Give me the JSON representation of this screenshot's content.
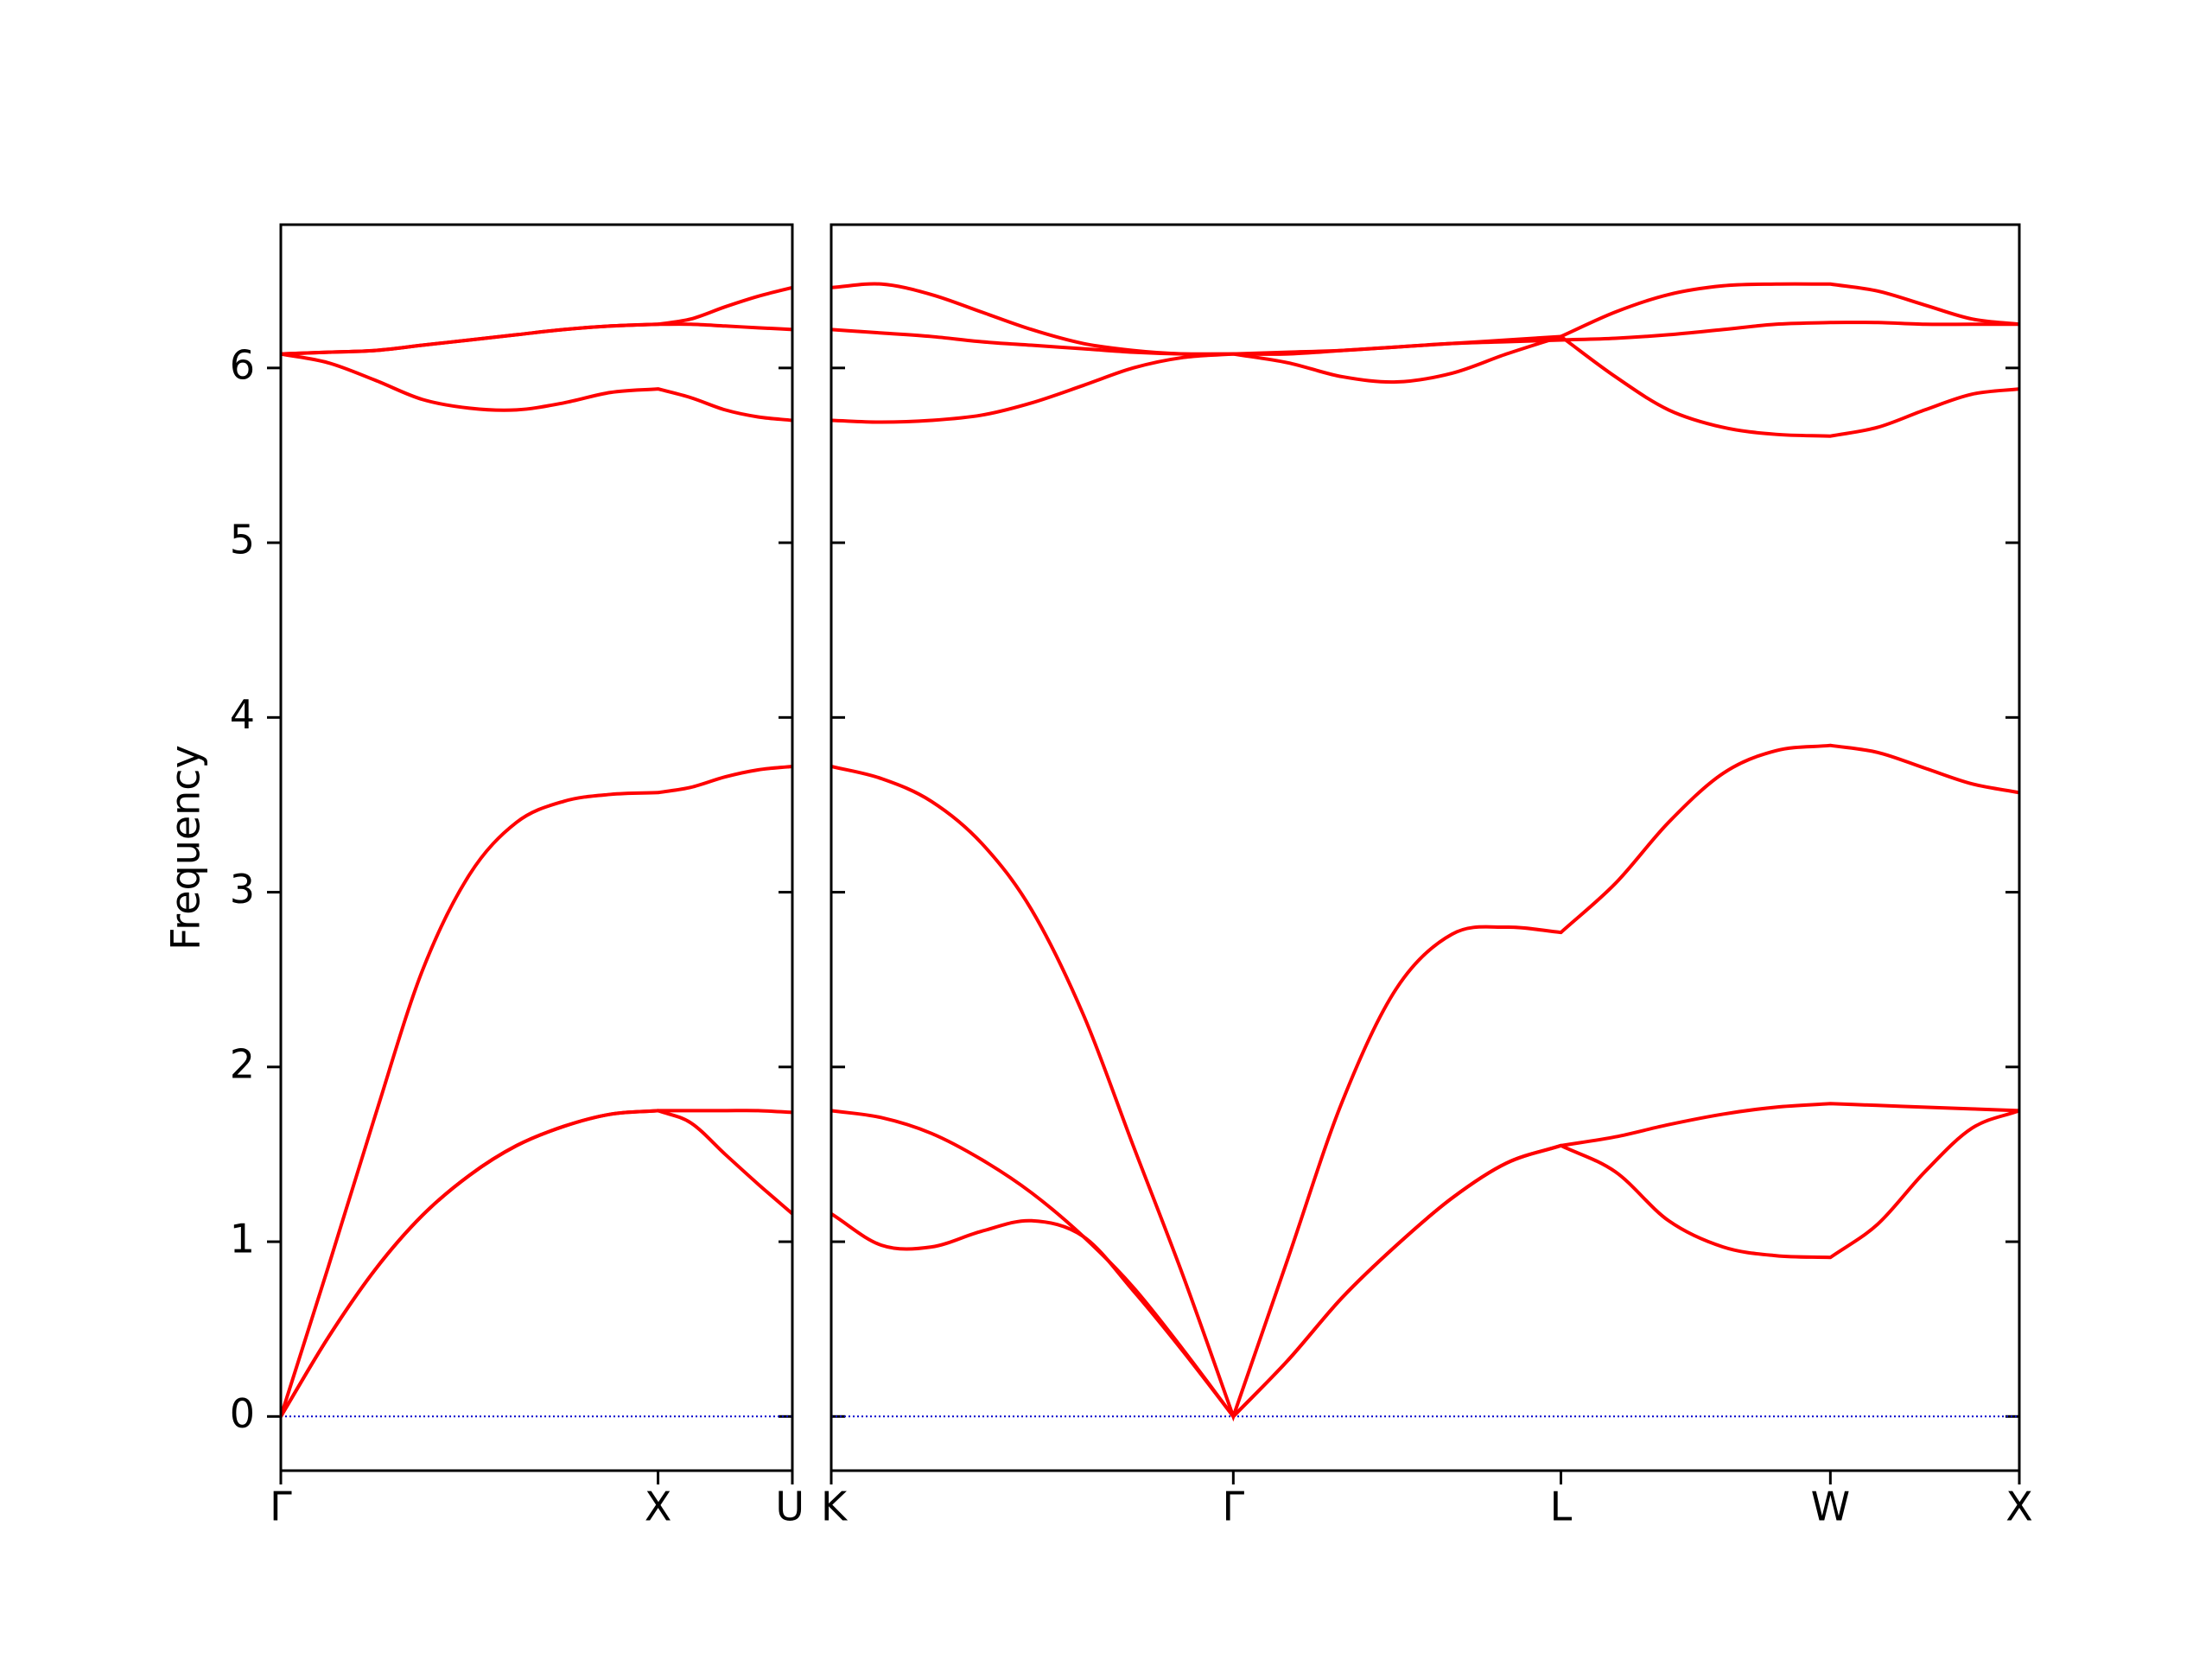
{
  "chart_data": [
    {
      "type": "line",
      "ylabel": "Frequency",
      "x": [
        0,
        0.125,
        0.25,
        0.375,
        0.5,
        0.625,
        0.75,
        0.875,
        1,
        1.087,
        1.178,
        1.265,
        1.356
      ],
      "xlim": [
        0,
        1.356
      ],
      "xticks": [
        {
          "value": 0,
          "label": "Γ"
        },
        {
          "value": 1,
          "label": "X"
        },
        {
          "value": 1.356,
          "label": "U"
        }
      ],
      "ylim": [
        -0.31,
        6.82
      ],
      "yticks": [
        0,
        1,
        2,
        3,
        4,
        5,
        6
      ],
      "zero_line": true,
      "zero_line_color": "#0000cc",
      "series": [
        {
          "color": "#ff0000",
          "values": [
            0,
            0.45,
            0.84,
            1.15,
            1.38,
            1.55,
            1.66,
            1.73,
            1.75,
            1.68,
            1.5,
            1.33,
            1.16
          ]
        },
        {
          "color": "#ff0000",
          "values": [
            0,
            0.45,
            0.84,
            1.15,
            1.38,
            1.55,
            1.66,
            1.73,
            1.75,
            1.75,
            1.75,
            1.75,
            1.74
          ]
        },
        {
          "color": "#ff0000",
          "values": [
            0,
            0.85,
            1.72,
            2.55,
            3.1,
            3.4,
            3.52,
            3.56,
            3.57,
            3.6,
            3.66,
            3.7,
            3.72
          ]
        },
        {
          "color": "#ff0000",
          "values": [
            6.08,
            6.03,
            5.93,
            5.82,
            5.77,
            5.76,
            5.8,
            5.86,
            5.88,
            5.83,
            5.76,
            5.72,
            5.7
          ]
        },
        {
          "color": "#ff0000",
          "values": [
            6.08,
            6.09,
            6.1,
            6.13,
            6.16,
            6.19,
            6.22,
            6.24,
            6.25,
            6.25,
            6.24,
            6.23,
            6.22
          ]
        },
        {
          "color": "#ff0000",
          "values": [
            6.08,
            6.09,
            6.1,
            6.13,
            6.16,
            6.19,
            6.22,
            6.24,
            6.25,
            6.28,
            6.35,
            6.41,
            6.46
          ]
        }
      ]
    },
    {
      "type": "line",
      "x": [
        1.356,
        1.489,
        1.621,
        1.754,
        1.886,
        2.023,
        2.155,
        2.288,
        2.42,
        2.564,
        2.708,
        2.852,
        2.999,
        3.143,
        3.287,
        3.431,
        3.572,
        3.716,
        3.856,
        4.0,
        4.125,
        4.25,
        4.375,
        4.5
      ],
      "xlim": [
        1.356,
        4.5
      ],
      "xticks": [
        {
          "value": 1.356,
          "label": "K"
        },
        {
          "value": 2.42,
          "label": "Γ"
        },
        {
          "value": 3.287,
          "label": "L"
        },
        {
          "value": 4.0,
          "label": "W"
        },
        {
          "value": 4.5,
          "label": "X"
        }
      ],
      "ylim": [
        -0.31,
        6.82
      ],
      "zero_line": true,
      "zero_line_color": "#0000cc",
      "series": [
        {
          "color": "#ff0000",
          "values": [
            1.16,
            0.98,
            0.97,
            1.06,
            1.12,
            1.03,
            0.72,
            0.37,
            0,
            0.32,
            0.68,
            0.98,
            1.25,
            1.45,
            1.55,
            1.4,
            1.12,
            0.97,
            0.92,
            0.91,
            1.1,
            1.4,
            1.65,
            1.75
          ]
        },
        {
          "color": "#ff0000",
          "values": [
            1.75,
            1.71,
            1.62,
            1.47,
            1.28,
            1.03,
            0.74,
            0.38,
            0,
            0.32,
            0.68,
            0.98,
            1.25,
            1.45,
            1.55,
            1.6,
            1.67,
            1.73,
            1.77,
            1.79,
            1.78,
            1.77,
            1.76,
            1.75
          ]
        },
        {
          "color": "#ff0000",
          "values": [
            3.72,
            3.65,
            3.52,
            3.28,
            2.9,
            2.3,
            1.55,
            0.8,
            0,
            0.9,
            1.8,
            2.45,
            2.76,
            2.8,
            2.77,
            3.05,
            3.4,
            3.68,
            3.81,
            3.84,
            3.8,
            3.71,
            3.62,
            3.57
          ]
        },
        {
          "color": "#ff0000",
          "values": [
            5.7,
            5.69,
            5.7,
            5.73,
            5.8,
            5.9,
            6.0,
            6.06,
            6.08,
            6.03,
            5.95,
            5.92,
            5.97,
            6.08,
            6.18,
            5.95,
            5.76,
            5.66,
            5.62,
            5.61,
            5.66,
            5.76,
            5.85,
            5.88
          ]
        },
        {
          "color": "#ff0000",
          "values": [
            6.22,
            6.2,
            6.18,
            6.15,
            6.13,
            6.11,
            6.09,
            6.08,
            6.08,
            6.08,
            6.1,
            6.12,
            6.14,
            6.15,
            6.16,
            6.17,
            6.19,
            6.22,
            6.25,
            6.26,
            6.26,
            6.25,
            6.25,
            6.25
          ]
        },
        {
          "color": "#ff0000",
          "values": [
            6.46,
            6.48,
            6.42,
            6.32,
            6.22,
            6.14,
            6.1,
            6.08,
            6.08,
            6.09,
            6.1,
            6.12,
            6.14,
            6.16,
            6.18,
            6.32,
            6.42,
            6.47,
            6.48,
            6.48,
            6.44,
            6.36,
            6.28,
            6.25
          ]
        }
      ]
    }
  ]
}
